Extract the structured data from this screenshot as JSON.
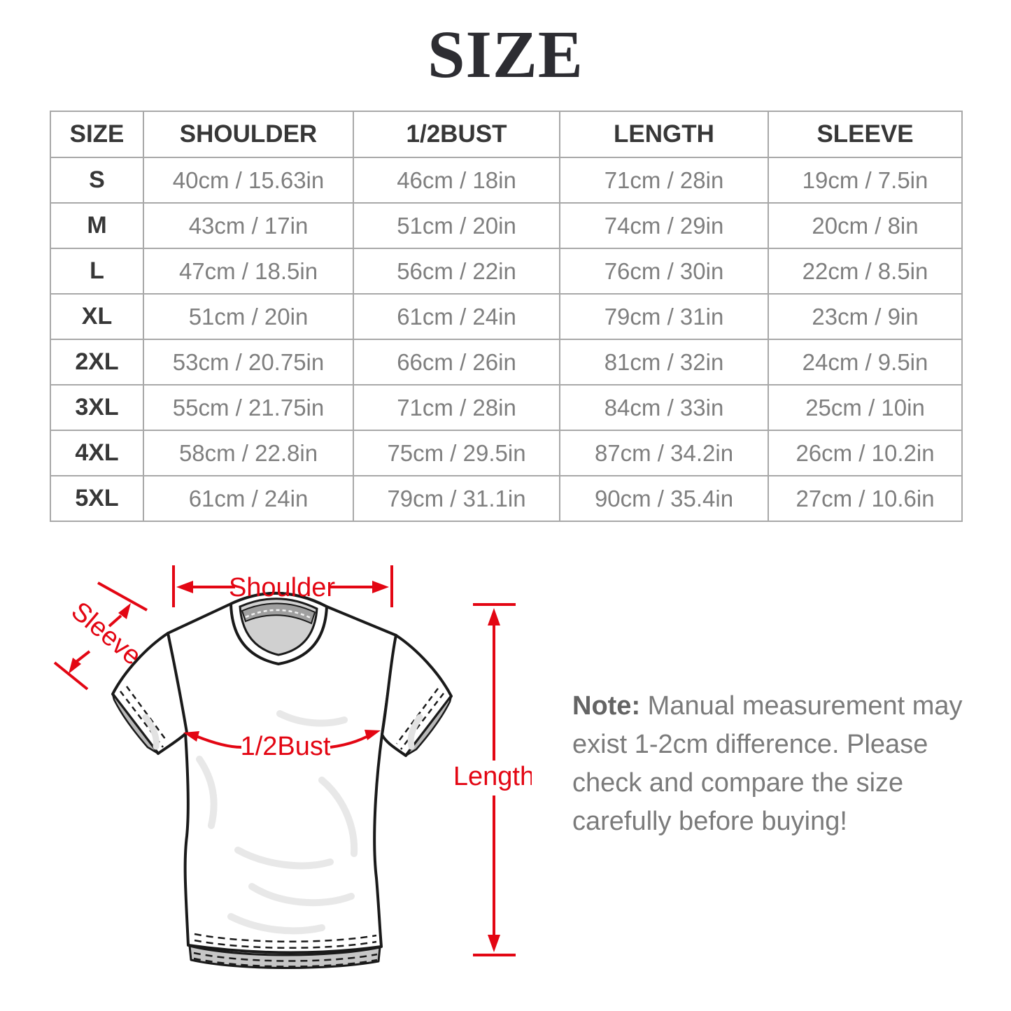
{
  "title": "SIZE",
  "table": {
    "headers": [
      "SIZE",
      "SHOULDER",
      "1/2BUST",
      "LENGTH",
      "SLEEVE"
    ],
    "rows": [
      [
        "S",
        "40cm / 15.63in",
        "46cm / 18in",
        "71cm / 28in",
        "19cm / 7.5in"
      ],
      [
        "M",
        "43cm / 17in",
        "51cm / 20in",
        "74cm / 29in",
        "20cm / 8in"
      ],
      [
        "L",
        "47cm / 18.5in",
        "56cm / 22in",
        "76cm / 30in",
        "22cm / 8.5in"
      ],
      [
        "XL",
        "51cm / 20in",
        "61cm / 24in",
        "79cm / 31in",
        "23cm / 9in"
      ],
      [
        "2XL",
        "53cm / 20.75in",
        "66cm / 26in",
        "81cm / 32in",
        "24cm / 9.5in"
      ],
      [
        "3XL",
        "55cm / 21.75in",
        "71cm / 28in",
        "84cm / 33in",
        "25cm / 10in"
      ],
      [
        "4XL",
        "58cm / 22.8in",
        "75cm / 29.5in",
        "87cm / 34.2in",
        "26cm / 10.2in"
      ],
      [
        "5XL",
        "61cm / 24in",
        "79cm / 31.1in",
        "90cm / 35.4in",
        "27cm / 10.6in"
      ]
    ]
  },
  "diagram": {
    "labels": {
      "shoulder": "Shoulder",
      "sleeve": "Sleeve",
      "half_bust": "1/2Bust",
      "length": "Length"
    }
  },
  "note": {
    "label": "Note:",
    "lines": [
      "Manual measurement may",
      "exist 1-2cm difference. Please",
      "check and compare the size",
      "carefully before buying!"
    ]
  },
  "colors": {
    "annotation_red": "#e30613",
    "title_color": "#2d2d32",
    "table_border": "#a8a8a8",
    "header_text": "#373737",
    "value_text": "#7f7f7f",
    "note_text": "#7b7b7b"
  }
}
